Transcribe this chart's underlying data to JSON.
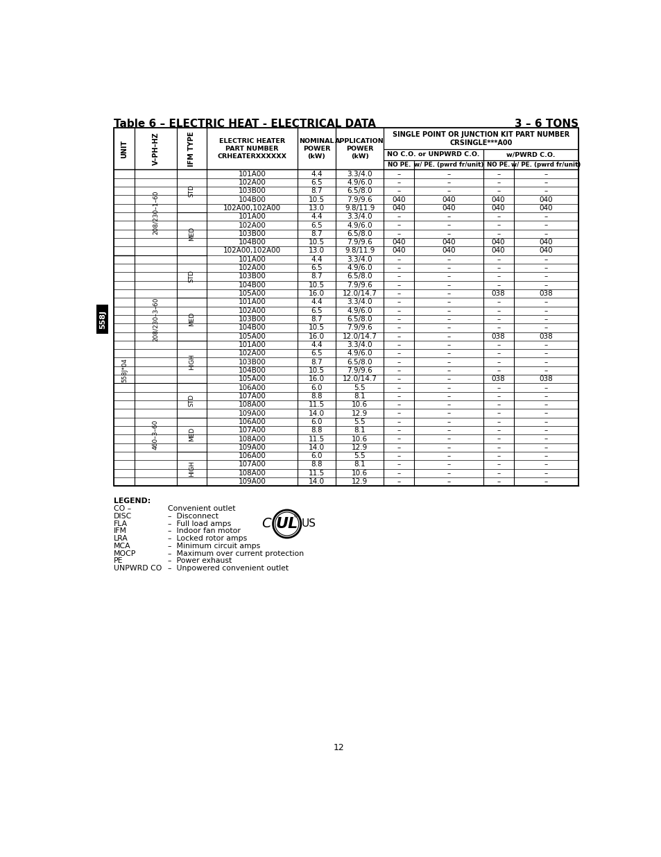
{
  "title_left": "Table 6 – ELECTRIC HEAT - ELECTRICAL DATA",
  "title_right": "3 – 6 TONS",
  "page_num": "12",
  "table_data": [
    [
      "208/230–1–60",
      "STD",
      "101A00",
      "4.4",
      "3.3/4.0",
      "–",
      "–",
      "–",
      "–"
    ],
    [
      "",
      "",
      "102A00",
      "6.5",
      "4.9/6.0",
      "–",
      "–",
      "–",
      "–"
    ],
    [
      "",
      "",
      "103B00",
      "8.7",
      "6.5/8.0",
      "–",
      "–",
      "–",
      "–"
    ],
    [
      "",
      "",
      "104B00",
      "10.5",
      "7.9/9.6",
      "040",
      "040",
      "040",
      "040"
    ],
    [
      "",
      "",
      "102A00,102A00",
      "13.0",
      "9.8/11.9",
      "040",
      "040",
      "040",
      "040"
    ],
    [
      "",
      "MED",
      "101A00",
      "4.4",
      "3.3/4.0",
      "–",
      "–",
      "–",
      "–"
    ],
    [
      "",
      "",
      "102A00",
      "6.5",
      "4.9/6.0",
      "–",
      "–",
      "–",
      "–"
    ],
    [
      "",
      "",
      "103B00",
      "8.7",
      "6.5/8.0",
      "–",
      "–",
      "–",
      "–"
    ],
    [
      "",
      "",
      "104B00",
      "10.5",
      "7.9/9.6",
      "040",
      "040",
      "040",
      "040"
    ],
    [
      "",
      "",
      "102A00,102A00",
      "13.0",
      "9.8/11.9",
      "040",
      "040",
      "040",
      "040"
    ],
    [
      "208/230–3–60",
      "STD",
      "101A00",
      "4.4",
      "3.3/4.0",
      "–",
      "–",
      "–",
      "–"
    ],
    [
      "",
      "",
      "102A00",
      "6.5",
      "4.9/6.0",
      "–",
      "–",
      "–",
      "–"
    ],
    [
      "",
      "",
      "103B00",
      "8.7",
      "6.5/8.0",
      "–",
      "–",
      "–",
      "–"
    ],
    [
      "",
      "",
      "104B00",
      "10.5",
      "7.9/9.6",
      "–",
      "–",
      "–",
      "–"
    ],
    [
      "",
      "",
      "105A00",
      "16.0",
      "12.0/14.7",
      "–",
      "–",
      "038",
      "038"
    ],
    [
      "",
      "MED",
      "101A00",
      "4.4",
      "3.3/4.0",
      "–",
      "–",
      "–",
      "–"
    ],
    [
      "",
      "",
      "102A00",
      "6.5",
      "4.9/6.0",
      "–",
      "–",
      "–",
      "–"
    ],
    [
      "",
      "",
      "103B00",
      "8.7",
      "6.5/8.0",
      "–",
      "–",
      "–",
      "–"
    ],
    [
      "",
      "",
      "104B00",
      "10.5",
      "7.9/9.6",
      "–",
      "–",
      "–",
      "–"
    ],
    [
      "",
      "",
      "105A00",
      "16.0",
      "12.0/14.7",
      "–",
      "–",
      "038",
      "038"
    ],
    [
      "",
      "HIGH",
      "101A00",
      "4.4",
      "3.3/4.0",
      "–",
      "–",
      "–",
      "–"
    ],
    [
      "",
      "",
      "102A00",
      "6.5",
      "4.9/6.0",
      "–",
      "–",
      "–",
      "–"
    ],
    [
      "",
      "",
      "103B00",
      "8.7",
      "6.5/8.0",
      "–",
      "–",
      "–",
      "–"
    ],
    [
      "",
      "",
      "104B00",
      "10.5",
      "7.9/9.6",
      "–",
      "–",
      "–",
      "–"
    ],
    [
      "",
      "",
      "105A00",
      "16.0",
      "12.0/14.7",
      "–",
      "–",
      "038",
      "038"
    ],
    [
      "460–3–60",
      "STD",
      "106A00",
      "6.0",
      "5.5",
      "–",
      "–",
      "–",
      "–"
    ],
    [
      "",
      "",
      "107A00",
      "8.8",
      "8.1",
      "–",
      "–",
      "–",
      "–"
    ],
    [
      "",
      "",
      "108A00",
      "11.5",
      "10.6",
      "–",
      "–",
      "–",
      "–"
    ],
    [
      "",
      "",
      "109A00",
      "14.0",
      "12.9",
      "–",
      "–",
      "–",
      "–"
    ],
    [
      "",
      "MED",
      "106A00",
      "6.0",
      "5.5",
      "–",
      "–",
      "–",
      "–"
    ],
    [
      "",
      "",
      "107A00",
      "8.8",
      "8.1",
      "–",
      "–",
      "–",
      "–"
    ],
    [
      "",
      "",
      "108A00",
      "11.5",
      "10.6",
      "–",
      "–",
      "–",
      "–"
    ],
    [
      "",
      "",
      "109A00",
      "14.0",
      "12.9",
      "–",
      "–",
      "–",
      "–"
    ],
    [
      "",
      "HIGH",
      "106A00",
      "6.0",
      "5.5",
      "–",
      "–",
      "–",
      "–"
    ],
    [
      "",
      "",
      "107A00",
      "8.8",
      "8.1",
      "–",
      "–",
      "–",
      "–"
    ],
    [
      "",
      "",
      "108A00",
      "11.5",
      "10.6",
      "–",
      "–",
      "–",
      "–"
    ],
    [
      "",
      "",
      "109A00",
      "14.0",
      "12.9",
      "–",
      "–",
      "–",
      "–"
    ]
  ],
  "unit_groups": [
    [
      0,
      10,
      "208/230–1–60",
      ""
    ],
    [
      10,
      37,
      "208/230–3–60",
      "558J*04"
    ]
  ],
  "vphz_groups": [
    [
      0,
      10,
      "208/230–1–60"
    ],
    [
      10,
      25,
      "208/230–3–60"
    ],
    [
      25,
      37,
      "460–3–60"
    ]
  ],
  "ifm_groups": [
    [
      0,
      5,
      "STD"
    ],
    [
      5,
      10,
      "MED"
    ],
    [
      10,
      15,
      "STD"
    ],
    [
      15,
      20,
      "MED"
    ],
    [
      20,
      25,
      "HIGH"
    ],
    [
      25,
      29,
      "STD"
    ],
    [
      29,
      33,
      "MED"
    ],
    [
      33,
      37,
      "HIGH"
    ]
  ],
  "col_props": [
    0.045,
    0.09,
    0.065,
    0.195,
    0.083,
    0.103,
    0.066,
    0.148,
    0.066,
    0.139
  ],
  "bg_color": "#ffffff",
  "border_color": "#000000",
  "text_color": "#000000"
}
